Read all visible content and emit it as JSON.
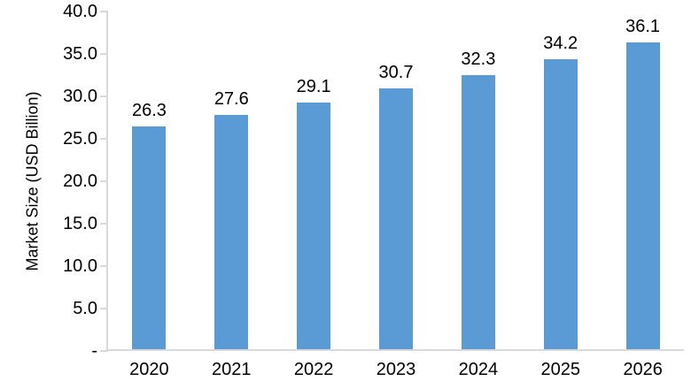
{
  "chart_data": {
    "type": "bar",
    "title": "",
    "categories": [
      "2020",
      "2021",
      "2022",
      "2023",
      "2024",
      "2025",
      "2026"
    ],
    "values": [
      26.3,
      27.6,
      29.1,
      30.7,
      32.3,
      34.2,
      36.1
    ],
    "data_labels": [
      "26.3",
      "27.6",
      "29.1",
      "30.7",
      "32.3",
      "34.2",
      "36.1"
    ],
    "xlabel": "",
    "ylabel": "Market Size (USD Billion)",
    "ylim": [
      0,
      40
    ],
    "ytick_labels": [
      "40.0",
      "35.0",
      "30.0",
      "25.0",
      "20.0",
      "15.0",
      "10.0",
      "5.0",
      "-"
    ],
    "ytick_values": [
      40,
      35,
      30,
      25,
      20,
      15,
      10,
      5,
      0
    ],
    "bar_color": "#5B9BD5",
    "axis_color": "#D9D9D9",
    "text_color": "#000000",
    "grid": "off",
    "legend": "none"
  }
}
